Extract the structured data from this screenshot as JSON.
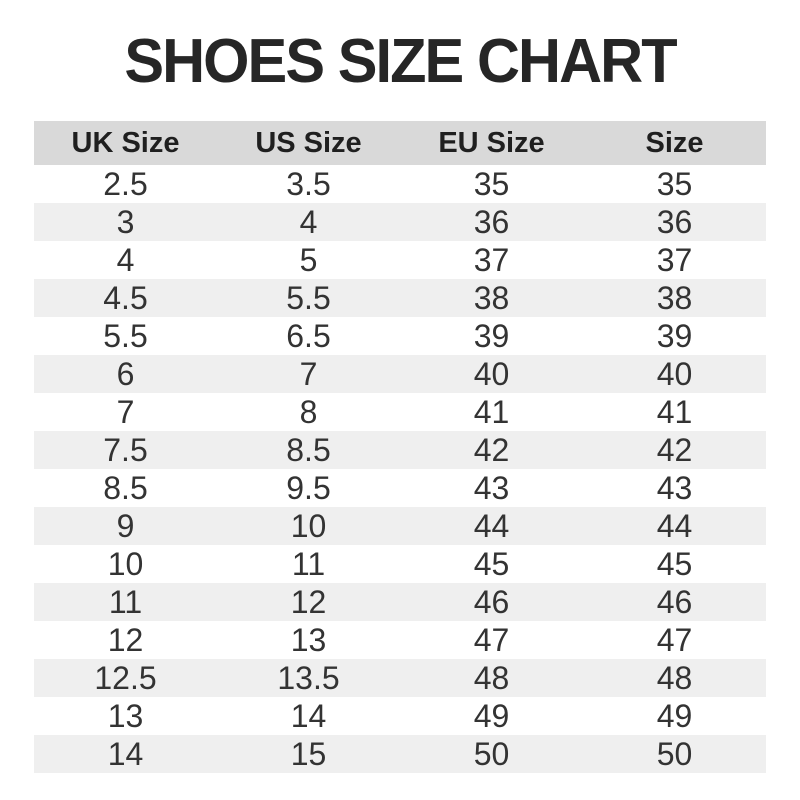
{
  "chart_data": {
    "type": "table",
    "title": "SHOES SIZE CHART",
    "columns": [
      "UK Size",
      "US Size",
      "EU Size",
      "Size"
    ],
    "rows": [
      [
        "2.5",
        "3.5",
        "35",
        "35"
      ],
      [
        "3",
        "4",
        "36",
        "36"
      ],
      [
        "4",
        "5",
        "37",
        "37"
      ],
      [
        "4.5",
        "5.5",
        "38",
        "38"
      ],
      [
        "5.5",
        "6.5",
        "39",
        "39"
      ],
      [
        "6",
        "7",
        "40",
        "40"
      ],
      [
        "7",
        "8",
        "41",
        "41"
      ],
      [
        "7.5",
        "8.5",
        "42",
        "42"
      ],
      [
        "8.5",
        "9.5",
        "43",
        "43"
      ],
      [
        "9",
        "10",
        "44",
        "44"
      ],
      [
        "10",
        "11",
        "45",
        "45"
      ],
      [
        "11",
        "12",
        "46",
        "46"
      ],
      [
        "12",
        "13",
        "47",
        "47"
      ],
      [
        "12.5",
        "13.5",
        "48",
        "48"
      ],
      [
        "13",
        "14",
        "49",
        "49"
      ],
      [
        "14",
        "15",
        "50",
        "50"
      ]
    ],
    "layout": {
      "legend": "none",
      "grid": "alternating-row-stripes"
    }
  },
  "colors": {
    "background": "#ffffff",
    "header_row_bg": "#d9d9d9",
    "alt_row_bg": "#efefef",
    "title_text": "#262626",
    "cell_text": "#333333"
  }
}
